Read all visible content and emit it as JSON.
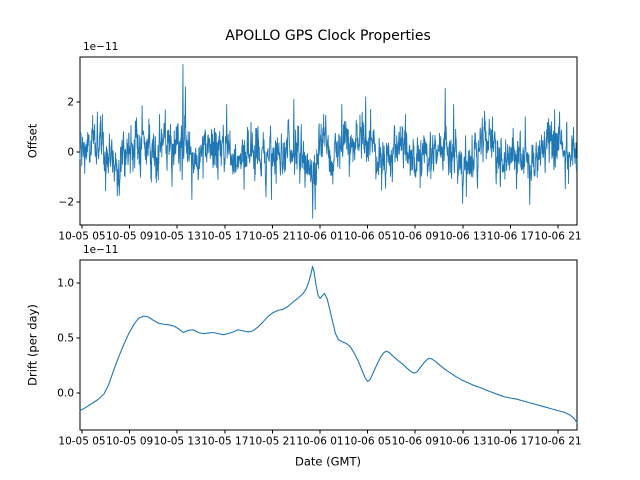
{
  "figure": {
    "title": "APOLLO GPS Clock Properties",
    "background_color": "#ffffff",
    "line_color": "#1f77b4",
    "axis_color": "#000000"
  },
  "chart_data": [
    {
      "type": "line",
      "title": "APOLLO GPS Clock Properties",
      "ylabel": "Offset",
      "xlabel": "",
      "scale_text": "1e−11",
      "scale_factor": "1e-11",
      "legend": "none",
      "grid": false,
      "line_color": "#1f77b4",
      "ylim": [
        -2.92,
        3.8
      ],
      "y_ticks": [
        {
          "value": 2,
          "label": "2"
        },
        {
          "value": 0,
          "label": "0"
        },
        {
          "value": -2,
          "label": "−2"
        }
      ],
      "x_tick_labels": [
        "10-05 05",
        "10-05 09",
        "10-05 13",
        "10-05 17",
        "10-05 21",
        "10-06 01",
        "10-06 05",
        "10-06 09",
        "10-06 13",
        "10-06 17",
        "10-06 21"
      ],
      "description": "High-rate noisy clock offset series, mean ~0, typical band ±1e-11, with isolated spikes",
      "series_synthesis": {
        "n_points": 2000,
        "seed": 1234,
        "ar_coeff": 0.5,
        "noise_sigma": 0.42,
        "clip": [
          -2.7,
          3.55
        ],
        "envelope": [
          [
            0.0,
            0.0
          ],
          [
            0.02,
            0.1
          ],
          [
            0.04,
            0.35
          ],
          [
            0.06,
            -0.15
          ],
          [
            0.075,
            -0.45
          ],
          [
            0.09,
            0.05
          ],
          [
            0.12,
            0.4
          ],
          [
            0.15,
            0.0
          ],
          [
            0.17,
            0.35
          ],
          [
            0.19,
            -0.25
          ],
          [
            0.205,
            0.45
          ],
          [
            0.23,
            -0.35
          ],
          [
            0.26,
            0.05
          ],
          [
            0.29,
            0.2
          ],
          [
            0.31,
            -0.1
          ],
          [
            0.35,
            0.1
          ],
          [
            0.375,
            -0.25
          ],
          [
            0.4,
            0.05
          ],
          [
            0.42,
            0.3
          ],
          [
            0.445,
            -0.2
          ],
          [
            0.465,
            -1.0
          ],
          [
            0.48,
            0.0
          ],
          [
            0.49,
            0.6
          ],
          [
            0.505,
            -0.55
          ],
          [
            0.525,
            0.6
          ],
          [
            0.545,
            0.1
          ],
          [
            0.565,
            0.5
          ],
          [
            0.59,
            0.25
          ],
          [
            0.61,
            -0.45
          ],
          [
            0.635,
            0.0
          ],
          [
            0.655,
            0.2
          ],
          [
            0.68,
            -0.1
          ],
          [
            0.71,
            0.15
          ],
          [
            0.735,
            0.3
          ],
          [
            0.755,
            -0.15
          ],
          [
            0.77,
            -0.5
          ],
          [
            0.79,
            0.1
          ],
          [
            0.82,
            0.2
          ],
          [
            0.85,
            -0.2
          ],
          [
            0.875,
            0.1
          ],
          [
            0.905,
            -0.45
          ],
          [
            0.925,
            0.0
          ],
          [
            0.95,
            0.3
          ],
          [
            0.97,
            0.35
          ],
          [
            0.985,
            0.1
          ],
          [
            1.0,
            -0.4
          ]
        ],
        "spikes": [
          [
            0.035,
            1.6
          ],
          [
            0.045,
            1.5
          ],
          [
            0.075,
            -1.75
          ],
          [
            0.125,
            1.85
          ],
          [
            0.16,
            1.5
          ],
          [
            0.207,
            3.5
          ],
          [
            0.212,
            2.6
          ],
          [
            0.225,
            -1.9
          ],
          [
            0.295,
            1.9
          ],
          [
            0.33,
            -1.5
          ],
          [
            0.385,
            -1.9
          ],
          [
            0.43,
            2.1
          ],
          [
            0.468,
            -2.65
          ],
          [
            0.473,
            -2.3
          ],
          [
            0.49,
            1.5
          ],
          [
            0.527,
            1.9
          ],
          [
            0.575,
            2.2
          ],
          [
            0.585,
            1.7
          ],
          [
            0.615,
            -1.45
          ],
          [
            0.655,
            1.5
          ],
          [
            0.735,
            2.55
          ],
          [
            0.752,
            1.9
          ],
          [
            0.77,
            -2.05
          ],
          [
            0.8,
            -1.45
          ],
          [
            0.83,
            1.4
          ],
          [
            0.896,
            1.4
          ],
          [
            0.905,
            -2.1
          ],
          [
            0.955,
            1.7
          ],
          [
            0.965,
            1.6
          ],
          [
            0.999,
            -0.8
          ]
        ]
      }
    },
    {
      "type": "line",
      "ylabel": "Drift (per day)",
      "xlabel": "Date (GMT)",
      "scale_text": "1e−11",
      "scale_factor": "1e-11",
      "legend": "none",
      "grid": false,
      "line_color": "#1f77b4",
      "ylim": [
        -0.336,
        1.209
      ],
      "y_ticks": [
        {
          "value": 1.0,
          "label": "1.0"
        },
        {
          "value": 0.5,
          "label": "0.5"
        },
        {
          "value": 0.0,
          "label": "0.0"
        }
      ],
      "x_tick_labels": [
        "10-05 05",
        "10-05 09",
        "10-05 13",
        "10-05 17",
        "10-05 21",
        "10-06 01",
        "10-06 05",
        "10-06 09",
        "10-06 13",
        "10-06 17",
        "10-06 21"
      ],
      "description": "Smooth drift curve: rises from -0.16 to 0.70, plateau ~0.55, peak 1.15 mid-series, then decaying with dips/bumps to -0.27",
      "points": [
        [
          0.0,
          -0.16
        ],
        [
          0.012,
          -0.13
        ],
        [
          0.024,
          -0.095
        ],
        [
          0.036,
          -0.06
        ],
        [
          0.048,
          -0.01
        ],
        [
          0.058,
          0.08
        ],
        [
          0.068,
          0.21
        ],
        [
          0.078,
          0.33
        ],
        [
          0.088,
          0.44
        ],
        [
          0.098,
          0.54
        ],
        [
          0.108,
          0.62
        ],
        [
          0.118,
          0.68
        ],
        [
          0.128,
          0.7
        ],
        [
          0.138,
          0.69
        ],
        [
          0.148,
          0.66
        ],
        [
          0.158,
          0.635
        ],
        [
          0.168,
          0.625
        ],
        [
          0.178,
          0.62
        ],
        [
          0.188,
          0.61
        ],
        [
          0.198,
          0.585
        ],
        [
          0.208,
          0.55
        ],
        [
          0.218,
          0.57
        ],
        [
          0.228,
          0.575
        ],
        [
          0.238,
          0.55
        ],
        [
          0.248,
          0.54
        ],
        [
          0.258,
          0.545
        ],
        [
          0.268,
          0.55
        ],
        [
          0.278,
          0.54
        ],
        [
          0.288,
          0.53
        ],
        [
          0.298,
          0.54
        ],
        [
          0.308,
          0.555
        ],
        [
          0.318,
          0.575
        ],
        [
          0.328,
          0.565
        ],
        [
          0.338,
          0.555
        ],
        [
          0.348,
          0.565
        ],
        [
          0.358,
          0.6
        ],
        [
          0.368,
          0.645
        ],
        [
          0.378,
          0.695
        ],
        [
          0.388,
          0.73
        ],
        [
          0.398,
          0.75
        ],
        [
          0.408,
          0.76
        ],
        [
          0.418,
          0.785
        ],
        [
          0.428,
          0.825
        ],
        [
          0.438,
          0.86
        ],
        [
          0.448,
          0.9
        ],
        [
          0.455,
          0.945
        ],
        [
          0.461,
          1.02
        ],
        [
          0.465,
          1.09
        ],
        [
          0.468,
          1.15
        ],
        [
          0.471,
          1.1
        ],
        [
          0.475,
          0.98
        ],
        [
          0.479,
          0.89
        ],
        [
          0.483,
          0.86
        ],
        [
          0.488,
          0.885
        ],
        [
          0.492,
          0.905
        ],
        [
          0.497,
          0.86
        ],
        [
          0.502,
          0.77
        ],
        [
          0.508,
          0.655
        ],
        [
          0.514,
          0.54
        ],
        [
          0.52,
          0.485
        ],
        [
          0.528,
          0.465
        ],
        [
          0.536,
          0.45
        ],
        [
          0.544,
          0.42
        ],
        [
          0.552,
          0.36
        ],
        [
          0.56,
          0.29
        ],
        [
          0.568,
          0.2
        ],
        [
          0.574,
          0.135
        ],
        [
          0.579,
          0.105
        ],
        [
          0.584,
          0.125
        ],
        [
          0.59,
          0.185
        ],
        [
          0.597,
          0.255
        ],
        [
          0.604,
          0.32
        ],
        [
          0.611,
          0.365
        ],
        [
          0.616,
          0.38
        ],
        [
          0.622,
          0.37
        ],
        [
          0.63,
          0.335
        ],
        [
          0.64,
          0.295
        ],
        [
          0.65,
          0.26
        ],
        [
          0.658,
          0.225
        ],
        [
          0.666,
          0.195
        ],
        [
          0.672,
          0.18
        ],
        [
          0.679,
          0.195
        ],
        [
          0.686,
          0.24
        ],
        [
          0.694,
          0.285
        ],
        [
          0.701,
          0.315
        ],
        [
          0.708,
          0.31
        ],
        [
          0.716,
          0.285
        ],
        [
          0.726,
          0.245
        ],
        [
          0.736,
          0.21
        ],
        [
          0.746,
          0.18
        ],
        [
          0.756,
          0.15
        ],
        [
          0.768,
          0.12
        ],
        [
          0.78,
          0.095
        ],
        [
          0.792,
          0.07
        ],
        [
          0.805,
          0.05
        ],
        [
          0.818,
          0.025
        ],
        [
          0.83,
          0.005
        ],
        [
          0.842,
          -0.015
        ],
        [
          0.854,
          -0.035
        ],
        [
          0.866,
          -0.045
        ],
        [
          0.878,
          -0.055
        ],
        [
          0.89,
          -0.07
        ],
        [
          0.902,
          -0.085
        ],
        [
          0.914,
          -0.1
        ],
        [
          0.926,
          -0.115
        ],
        [
          0.938,
          -0.13
        ],
        [
          0.95,
          -0.145
        ],
        [
          0.962,
          -0.16
        ],
        [
          0.974,
          -0.175
        ],
        [
          0.986,
          -0.2
        ],
        [
          0.994,
          -0.23
        ],
        [
          1.0,
          -0.27
        ]
      ]
    }
  ]
}
